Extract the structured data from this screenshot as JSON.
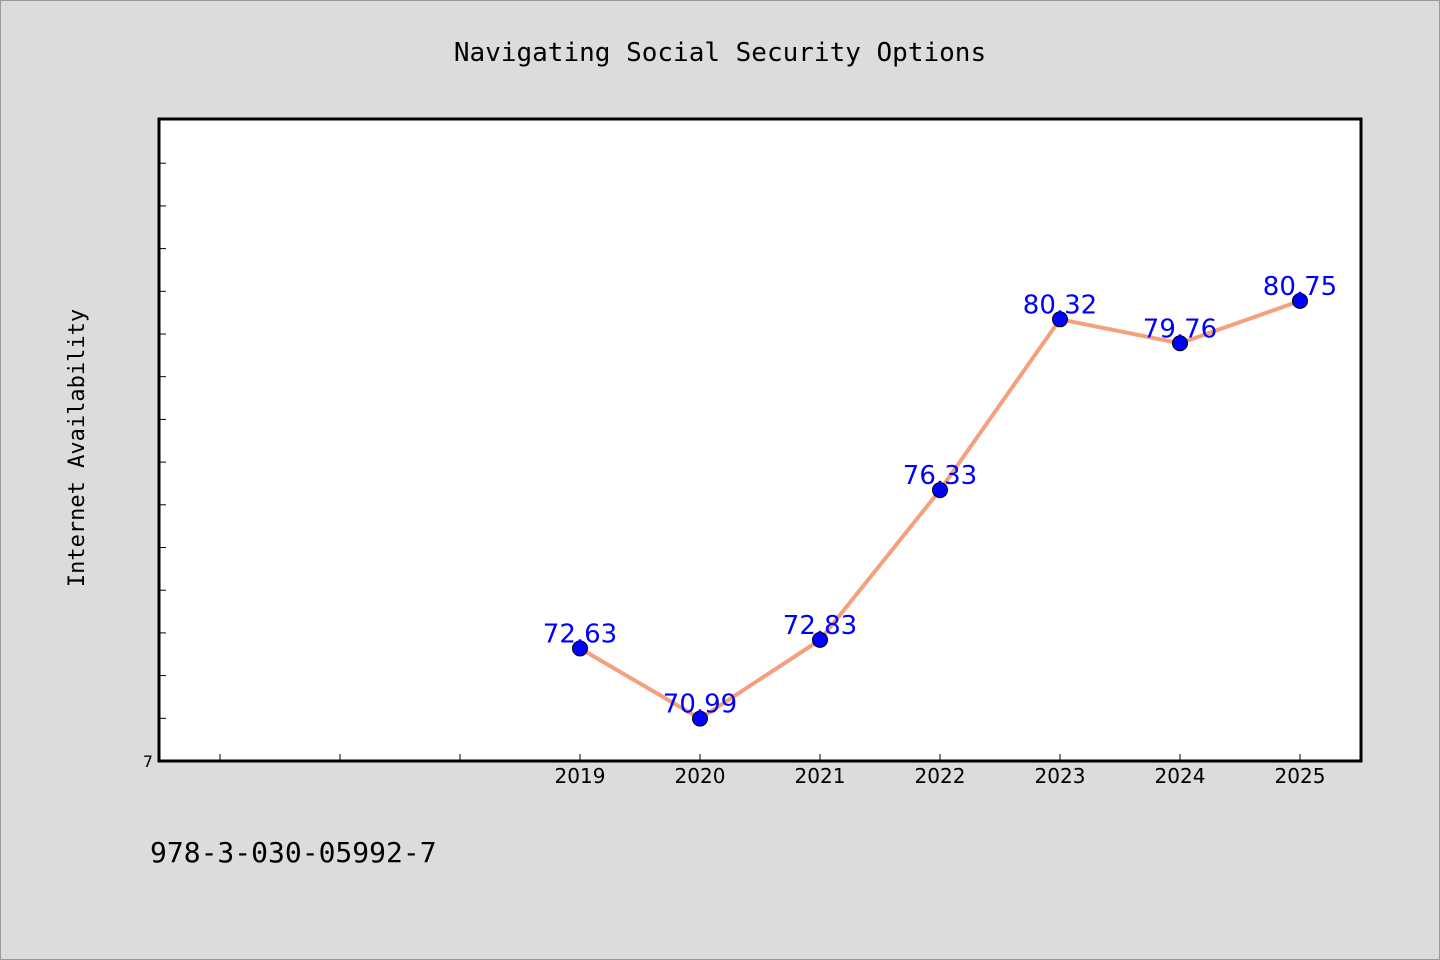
{
  "chart_data": {
    "type": "line",
    "title": "Navigating Social Security Options",
    "xlabel": "",
    "ylabel": "Internet Availability",
    "categories": [
      "2019",
      "2020",
      "2021",
      "2022",
      "2023",
      "2024",
      "2025"
    ],
    "series": [
      {
        "values": [
          72.63,
          70.99,
          72.83,
          76.33,
          80.32,
          79.76,
          80.75
        ]
      }
    ],
    "data_labels": [
      "72.63",
      "70.99",
      "72.83",
      "76.33",
      "80.32",
      "79.76",
      "80.75"
    ],
    "x_tick_labels": [
      "2019",
      "2020",
      "2021",
      "2022",
      "2023",
      "2024",
      "2025"
    ],
    "y_tick_label": "7",
    "ylim": [
      70.0,
      85.0
    ],
    "grid": false,
    "line_color": "#f4a07e",
    "marker_color": "#0000ff",
    "label_color": "#0000ff"
  },
  "footer": {
    "isbn": "978-3-030-05992-7"
  },
  "colors": {
    "background": "#dcdcdc",
    "plot_background": "#ffffff",
    "axis": "#000000"
  }
}
